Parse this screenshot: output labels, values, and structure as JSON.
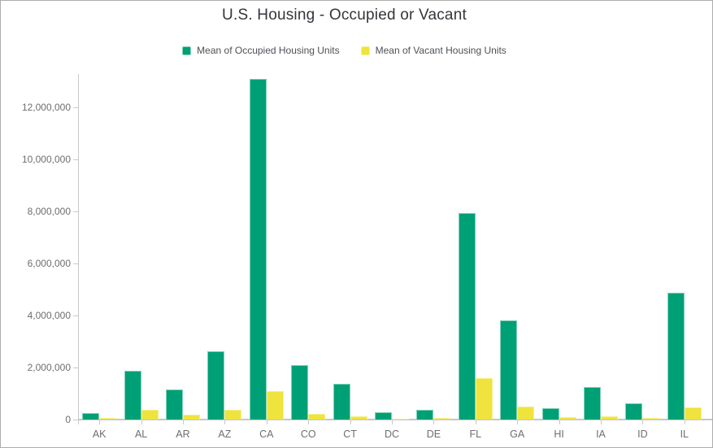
{
  "chart": {
    "title": "U.S. Housing - Occupied or Vacant"
  },
  "legend": {
    "items": [
      {
        "label": "Mean of Occupied Housing Units",
        "color": "#00a077"
      },
      {
        "label": "Mean of Vacant Housing Units",
        "color": "#efe33d"
      }
    ]
  },
  "chart_data": {
    "type": "bar",
    "title": "U.S. Housing - Occupied or Vacant",
    "categories": [
      "AK",
      "AL",
      "AR",
      "AZ",
      "CA",
      "CO",
      "CT",
      "DC",
      "DE",
      "FL",
      "GA",
      "HI",
      "IA",
      "ID",
      "IL"
    ],
    "series": [
      {
        "name": "Mean of Occupied Housing Units",
        "color": "#00a077",
        "border_color": "#82d2b6",
        "values": [
          260000,
          1870000,
          1150000,
          2620000,
          13100000,
          2100000,
          1380000,
          290000,
          370000,
          7930000,
          3820000,
          440000,
          1240000,
          630000,
          4870000
        ]
      },
      {
        "name": "Mean of Vacant Housing Units",
        "color": "#efe33d",
        "border_color": "#f6f08c",
        "values": [
          55000,
          380000,
          200000,
          390000,
          1100000,
          230000,
          130000,
          40000,
          65000,
          1610000,
          490000,
          80000,
          140000,
          75000,
          470000
        ]
      }
    ],
    "xlabel": "",
    "ylabel": "",
    "y_ticks": [
      0,
      2000000,
      4000000,
      6000000,
      8000000,
      10000000,
      12000000
    ],
    "ylim": [
      0,
      13281250
    ],
    "grid": false,
    "legend_position": "top",
    "axis_color": "#c9c9c9",
    "tick_label_color": "#6e6e6e"
  }
}
